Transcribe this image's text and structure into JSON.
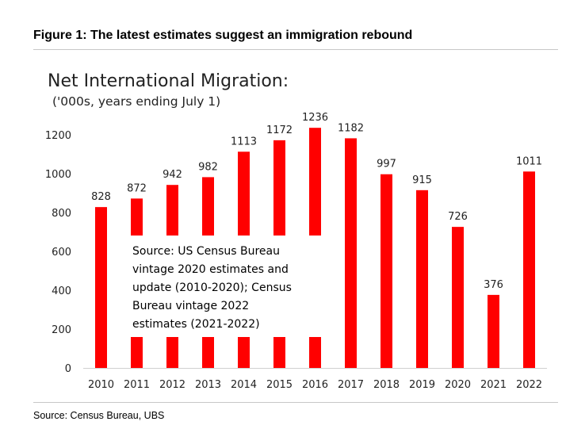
{
  "figure": {
    "title": "Figure 1: The latest estimates suggest an immigration rebound",
    "footer": "Source: Census Bureau, UBS"
  },
  "chart_data": {
    "type": "bar",
    "title": "Net International Migration:",
    "subtitle": "('000s, years ending July 1)",
    "categories": [
      "2010",
      "2011",
      "2012",
      "2013",
      "2014",
      "2015",
      "2016",
      "2017",
      "2018",
      "2019",
      "2020",
      "2021",
      "2022"
    ],
    "values": [
      828,
      872,
      942,
      982,
      1113,
      1172,
      1236,
      1182,
      997,
      915,
      726,
      376,
      1011
    ],
    "ylim": [
      0,
      1200
    ],
    "yticks": [
      0,
      200,
      400,
      600,
      800,
      1000,
      1200
    ],
    "bar_color": "#ff0000",
    "grid": false,
    "annotation": {
      "lines": [
        "Source: US Census Bureau",
        "vintage 2020 estimates and",
        "update (2010-2020); Census",
        "Bureau vintage 2022",
        "estimates (2021-2022)"
      ]
    }
  }
}
